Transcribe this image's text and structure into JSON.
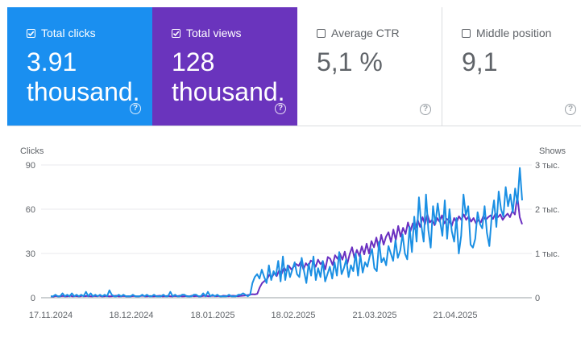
{
  "cards": [
    {
      "label": "Total clicks",
      "value": "3.91\nthousand.",
      "checked": true,
      "color": "#1a73e8"
    },
    {
      "label": "Total views",
      "value": "128\nthousand.",
      "checked": true,
      "color": "#673ab7"
    },
    {
      "label": "Average CTR",
      "value": "5,1 %",
      "checked": false
    },
    {
      "label": "Middle position",
      "value": "9,1",
      "checked": false
    }
  ],
  "help_glyph": "?",
  "colors": {
    "clicks": "#1a8fe3",
    "views": "#6a2fc0",
    "card_clicks_bg": "#1a8ff0",
    "card_views_bg": "#6a34bd",
    "grid": "#e8eaed",
    "axis_text": "#5f6368"
  },
  "chart_data": {
    "type": "line",
    "left_axis_label": "Clicks",
    "right_axis_label": "Shows",
    "left_ticks": [
      "90",
      "60",
      "30",
      "0"
    ],
    "left_tick_values": [
      90,
      60,
      30,
      0
    ],
    "right_ticks": [
      "3 тыс.",
      "2 тыс.",
      "1 тыс.",
      "0"
    ],
    "ylim_left": [
      0,
      90
    ],
    "ylim_right": [
      0,
      3000
    ],
    "x_labels": [
      "17.11.2024",
      "18.12.2024",
      "18.01.2025",
      "18.02.2025",
      "21.03.2025",
      "21.04.2025"
    ],
    "x_start": "2024-11-17",
    "x_end": "2025-05-20",
    "grid": true,
    "series": [
      {
        "name": "Total clicks",
        "axis": "left",
        "values": [
          1,
          1,
          2,
          1,
          1,
          3,
          1,
          2,
          1,
          3,
          1,
          2,
          1,
          2,
          1,
          4,
          1,
          3,
          1,
          2,
          1,
          2,
          1,
          2,
          1,
          5,
          2,
          1,
          1,
          2,
          1,
          2,
          1,
          1,
          1,
          2,
          1,
          1,
          1,
          2,
          1,
          2,
          1,
          1,
          2,
          1,
          1,
          1,
          2,
          1,
          1,
          4,
          1,
          2,
          1,
          1,
          2,
          2,
          1,
          1,
          1,
          2,
          2,
          1,
          1,
          3,
          1,
          4,
          1,
          2,
          1,
          2,
          1,
          1,
          1,
          1,
          2,
          1,
          1,
          1,
          2,
          2,
          3,
          2,
          1,
          2,
          10,
          14,
          16,
          13,
          19,
          14,
          10,
          22,
          12,
          18,
          15,
          25,
          11,
          28,
          12,
          22,
          14,
          19,
          24,
          16,
          14,
          27,
          18,
          10,
          23,
          15,
          28,
          12,
          20,
          14,
          25,
          11,
          16,
          21,
          13,
          24,
          15,
          31,
          16,
          20,
          26,
          14,
          22,
          18,
          30,
          15,
          29,
          17,
          24,
          21,
          28,
          33,
          20,
          18,
          38,
          24,
          27,
          22,
          35,
          30,
          25,
          39,
          27,
          32,
          43,
          30,
          26,
          48,
          31,
          55,
          38,
          68,
          49,
          38,
          70,
          46,
          34,
          62,
          50,
          64,
          52,
          42,
          66,
          40,
          60,
          45,
          38,
          54,
          30,
          42,
          70,
          56,
          62,
          36,
          34,
          40,
          58,
          50,
          47,
          62,
          44,
          35,
          55,
          66,
          48,
          72,
          60,
          55,
          75,
          62,
          70,
          58,
          74,
          64,
          88,
          66
        ]
      },
      {
        "name": "Total views",
        "axis": "right",
        "values": [
          30,
          25,
          40,
          30,
          35,
          40,
          30,
          35,
          45,
          30,
          40,
          35,
          30,
          45,
          35,
          40,
          35,
          30,
          40,
          35,
          45,
          30,
          35,
          40,
          30,
          35,
          40,
          45,
          30,
          35,
          40,
          30,
          35,
          30,
          40,
          35,
          30,
          40,
          45,
          30,
          35,
          40,
          30,
          35,
          40,
          45,
          30,
          35,
          40,
          35,
          30,
          40,
          35,
          45,
          30,
          35,
          40,
          30,
          45,
          35,
          40,
          30,
          35,
          45,
          40,
          35,
          40,
          45,
          35,
          40,
          30,
          45,
          40,
          35,
          40,
          45,
          40,
          35,
          40,
          45,
          50,
          60,
          70,
          80,
          75,
          90,
          230,
          330,
          380,
          420,
          520,
          460,
          560,
          490,
          620,
          540,
          680,
          600,
          720,
          640,
          700,
          760,
          720,
          820,
          640,
          780,
          710,
          840,
          800,
          700,
          860,
          760,
          820,
          640,
          920,
          880,
          740,
          960,
          880,
          1000,
          860,
          1040,
          760,
          980,
          1140,
          900,
          1080,
          940,
          1160,
          980,
          1220,
          1000,
          1280,
          1140,
          1360,
          1100,
          1420,
          1200,
          1380,
          1480,
          1260,
          1540,
          1300,
          1620,
          1380,
          1580,
          1440,
          1700,
          1500,
          1680,
          1540,
          1760,
          1600,
          1820,
          1660,
          1880,
          1700,
          1760,
          1640,
          1800,
          1720,
          1860,
          1680,
          1780,
          1740,
          1620,
          1800,
          1700,
          1840,
          1760,
          1880,
          1760,
          1840,
          1720,
          1800,
          1680,
          1760,
          1700,
          1840,
          1760,
          1820,
          1860,
          1780,
          1900,
          1820,
          1880,
          1760,
          1840,
          1900,
          1820,
          1960,
          1880,
          2300,
          1820,
          1660
        ]
      }
    ]
  }
}
